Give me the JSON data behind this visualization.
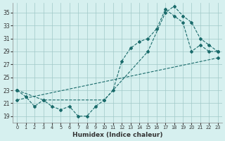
{
  "xlabel": "Humidex (Indice chaleur)",
  "bg_color": "#d6f0ef",
  "line_color": "#1a6b6b",
  "grid_color": "#a0c8c8",
  "xlim": [
    -0.5,
    23.5
  ],
  "ylim": [
    18,
    36.5
  ],
  "yticks": [
    19,
    21,
    23,
    25,
    27,
    29,
    31,
    33,
    35
  ],
  "xticks": [
    0,
    1,
    2,
    3,
    4,
    5,
    6,
    7,
    8,
    9,
    10,
    11,
    12,
    13,
    14,
    15,
    16,
    17,
    18,
    19,
    20,
    21,
    22,
    23
  ],
  "line1_x": [
    0,
    1,
    2,
    3,
    4,
    5,
    6,
    7,
    8,
    9,
    10,
    11,
    12,
    13,
    14,
    15,
    16,
    17,
    18,
    19,
    20,
    21,
    22,
    23
  ],
  "line1_y": [
    23,
    22,
    20.5,
    21.5,
    20.5,
    20,
    20.5,
    19,
    19,
    20.5,
    21.5,
    23,
    27.5,
    29.5,
    30.5,
    31,
    32.5,
    35.5,
    34.5,
    33.5,
    29,
    30,
    29,
    29
  ],
  "line2_x": [
    0,
    3,
    10,
    15,
    17,
    18,
    19,
    20,
    21,
    22,
    23
  ],
  "line2_y": [
    23,
    21.5,
    21.5,
    29,
    35,
    36,
    34.5,
    33.5,
    31,
    30,
    29
  ],
  "line3_x": [
    0,
    23
  ],
  "line3_y": [
    21.5,
    28
  ]
}
